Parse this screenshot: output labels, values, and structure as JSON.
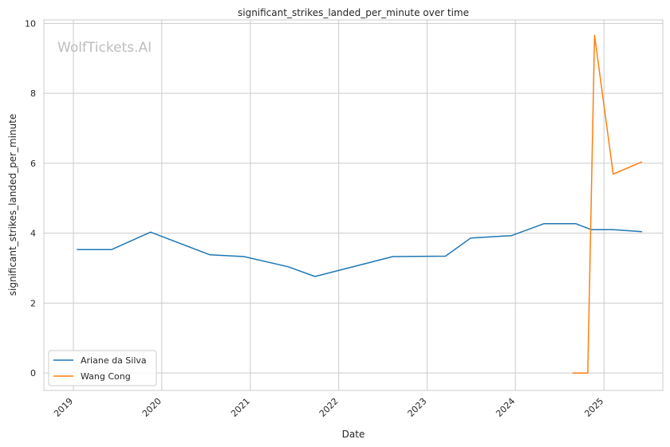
{
  "chart_data": {
    "type": "line",
    "title": "significant_strikes_landed_per_minute over time",
    "xlabel": "Date",
    "ylabel": "significant_strikes_landed_per_minute",
    "watermark": "WolfTickets.AI",
    "xlim": [
      "2018-09-01",
      "2025-09-01"
    ],
    "ylim": [
      -0.5,
      10.1
    ],
    "x_ticks": [
      "2019",
      "2020",
      "2021",
      "2022",
      "2023",
      "2024",
      "2025"
    ],
    "y_ticks": [
      0,
      2,
      4,
      6,
      8,
      10
    ],
    "grid": true,
    "legend_position": "lower-left",
    "series": [
      {
        "name": "Ariane da Silva",
        "color": "#1f77b4",
        "points": [
          [
            "2019-01-15",
            3.53
          ],
          [
            "2019-06-08",
            3.53
          ],
          [
            "2019-11-16",
            4.03
          ],
          [
            "2020-07-18",
            3.38
          ],
          [
            "2020-12-05",
            3.33
          ],
          [
            "2021-06-05",
            3.04
          ],
          [
            "2021-09-25",
            2.76
          ],
          [
            "2022-08-13",
            3.33
          ],
          [
            "2023-03-18",
            3.34
          ],
          [
            "2023-07-01",
            3.86
          ],
          [
            "2023-12-16",
            3.93
          ],
          [
            "2024-04-27",
            4.27
          ],
          [
            "2024-09-07",
            4.27
          ],
          [
            "2024-11-09",
            4.1
          ],
          [
            "2025-02-08",
            4.1
          ],
          [
            "2025-06-07",
            4.04
          ]
        ]
      },
      {
        "name": "Wang Cong",
        "color": "#ff7f0e",
        "points": [
          [
            "2024-08-24",
            0.0
          ],
          [
            "2024-10-26",
            0.0
          ],
          [
            "2024-11-23",
            9.66
          ],
          [
            "2025-02-08",
            5.69
          ],
          [
            "2025-06-07",
            6.04
          ]
        ]
      }
    ]
  }
}
